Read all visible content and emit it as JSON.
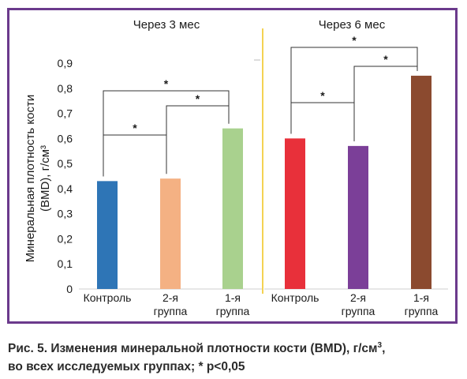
{
  "chart_data": {
    "type": "bar",
    "ylabel": "Минеральная плотность кости (BMD), г/см³",
    "ylabel_line1": "Минеральная плотность кости",
    "ylabel_line2": "(BMD), г/см³",
    "ylim": [
      0,
      0.9
    ],
    "yticks": [
      "0",
      "0,1",
      "0,2",
      "0,3",
      "0,4",
      "0,5",
      "0,6",
      "0,7",
      "0,8",
      "0,9"
    ],
    "panels": [
      {
        "title": "Через 3 мес",
        "categories": [
          "Контроль",
          "2-я группа",
          "1-я группа"
        ],
        "category_lines": [
          [
            "Контроль"
          ],
          [
            "2-я",
            "группа"
          ],
          [
            "1-я",
            "группа"
          ]
        ],
        "values": [
          0.43,
          0.44,
          0.64
        ],
        "colors": [
          "#2e75b6",
          "#f4b183",
          "#a9d18e"
        ],
        "significance": [
          {
            "from": 0,
            "to": 1,
            "label": "*"
          },
          {
            "from": 1,
            "to": 2,
            "label": "*"
          },
          {
            "from": 0,
            "to": 2,
            "label": "*"
          }
        ]
      },
      {
        "title": "Через 6 мес",
        "categories": [
          "Контроль",
          "2-я группа",
          "1-я группа"
        ],
        "category_lines": [
          [
            "Контроль"
          ],
          [
            "2-я",
            "группа"
          ],
          [
            "1-я",
            "группа"
          ]
        ],
        "values": [
          0.6,
          0.57,
          0.85
        ],
        "colors": [
          "#e8303a",
          "#7b3f98",
          "#8b4a2f"
        ],
        "significance": [
          {
            "from": 0,
            "to": 1,
            "label": "*"
          },
          {
            "from": 1,
            "to": 2,
            "label": "*"
          },
          {
            "from": 0,
            "to": 2,
            "label": "*"
          }
        ]
      }
    ],
    "divider_color": "#f0c419",
    "frame_color": "#6b3a8c"
  },
  "caption": {
    "text": "Рис. 5. Изменения минеральной плотности кости (BMD), г/см",
    "sup": "3",
    "text2": ",",
    "line2": "во всех исследуемых группах; * p<0,05"
  }
}
